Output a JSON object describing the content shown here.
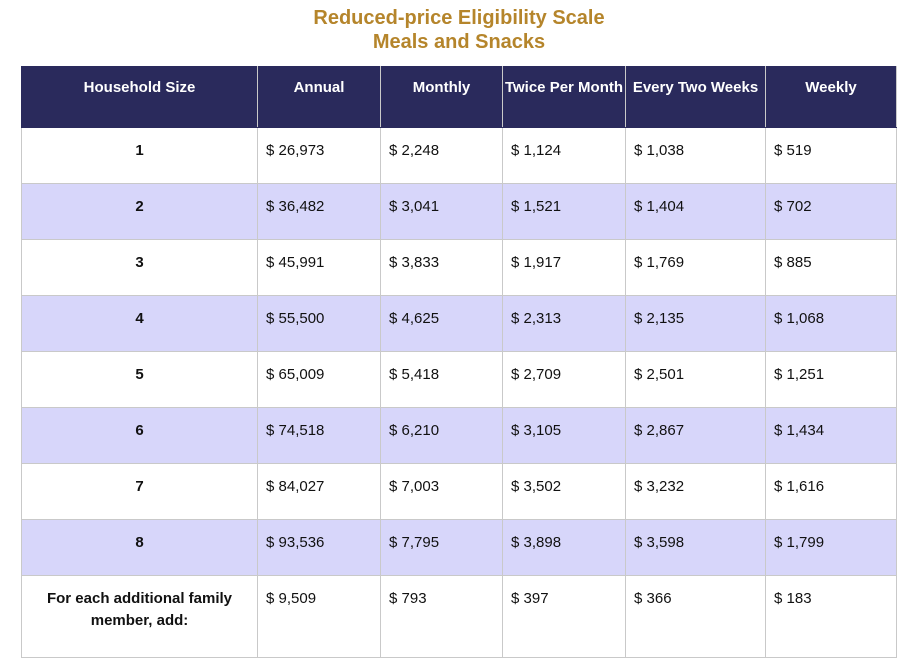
{
  "title": {
    "line1": "Reduced-price Eligibility Scale",
    "line2": "Meals and Snacks"
  },
  "columns": [
    "Household Size",
    "Annual",
    "Monthly",
    "Twice Per Month",
    "Every Two Weeks",
    "Weekly"
  ],
  "rows": [
    [
      "1",
      "$ 26,973",
      "$ 2,248",
      "$ 1,124",
      "$ 1,038",
      "$ 519"
    ],
    [
      "2",
      "$ 36,482",
      "$ 3,041",
      "$ 1,521",
      "$ 1,404",
      "$ 702"
    ],
    [
      "3",
      "$ 45,991",
      "$ 3,833",
      "$ 1,917",
      "$ 1,769",
      "$ 885"
    ],
    [
      "4",
      "$ 55,500",
      "$ 4,625",
      "$ 2,313",
      "$ 2,135",
      "$ 1,068"
    ],
    [
      "5",
      "$ 65,009",
      "$ 5,418",
      "$ 2,709",
      "$ 2,501",
      "$ 1,251"
    ],
    [
      "6",
      "$ 74,518",
      "$ 6,210",
      "$ 3,105",
      "$ 2,867",
      "$ 1,434"
    ],
    [
      "7",
      "$ 84,027",
      "$ 7,003",
      "$ 3,502",
      "$ 3,232",
      "$ 1,616"
    ],
    [
      "8",
      "$ 93,536",
      "$ 7,795",
      "$ 3,898",
      "$ 3,598",
      "$ 1,799"
    ],
    [
      "For each additional family member, add:",
      "$ 9,509",
      "$ 793",
      "$ 397",
      "$ 366",
      "$ 183"
    ]
  ],
  "colors": {
    "title": "#b5852b",
    "header_bg": "#2a2a5c",
    "header_text": "#ffffff",
    "alt_row_bg": "#d7d6fa",
    "row_bg": "#ffffff"
  }
}
